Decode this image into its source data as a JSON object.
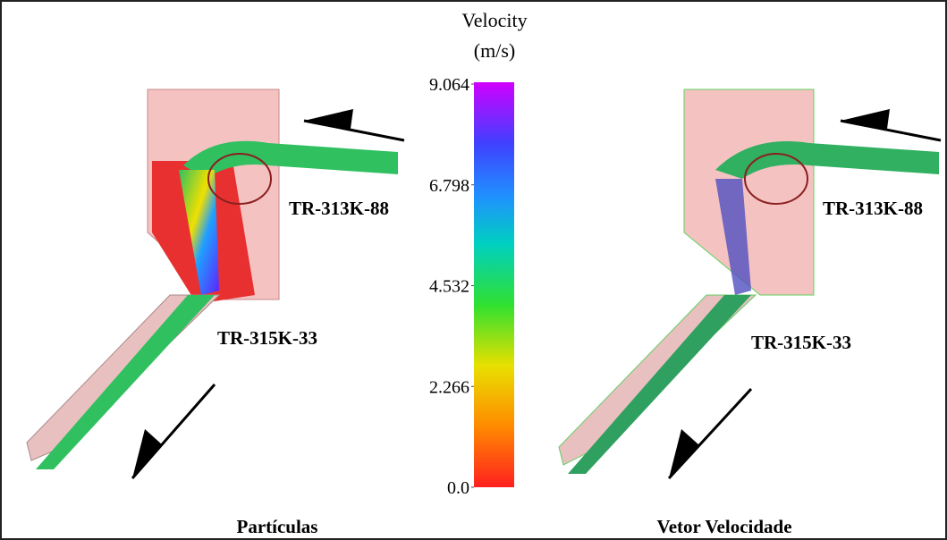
{
  "colorbar": {
    "title": "Velocity",
    "unit": "(m/s)",
    "lim": [
      0,
      9.064
    ],
    "ticks": [
      {
        "value": 0,
        "label": "0.0"
      },
      2.266,
      4.532,
      6.798,
      9.064
    ]
  },
  "left_panel": {
    "caption": "Partículas",
    "labels": [
      "TR-313K-88",
      "TR-315K-33"
    ]
  },
  "right_panel": {
    "caption": "Vetor Velocidade",
    "labels": [
      "TR-313K-88",
      "TR-315K-33"
    ]
  }
}
